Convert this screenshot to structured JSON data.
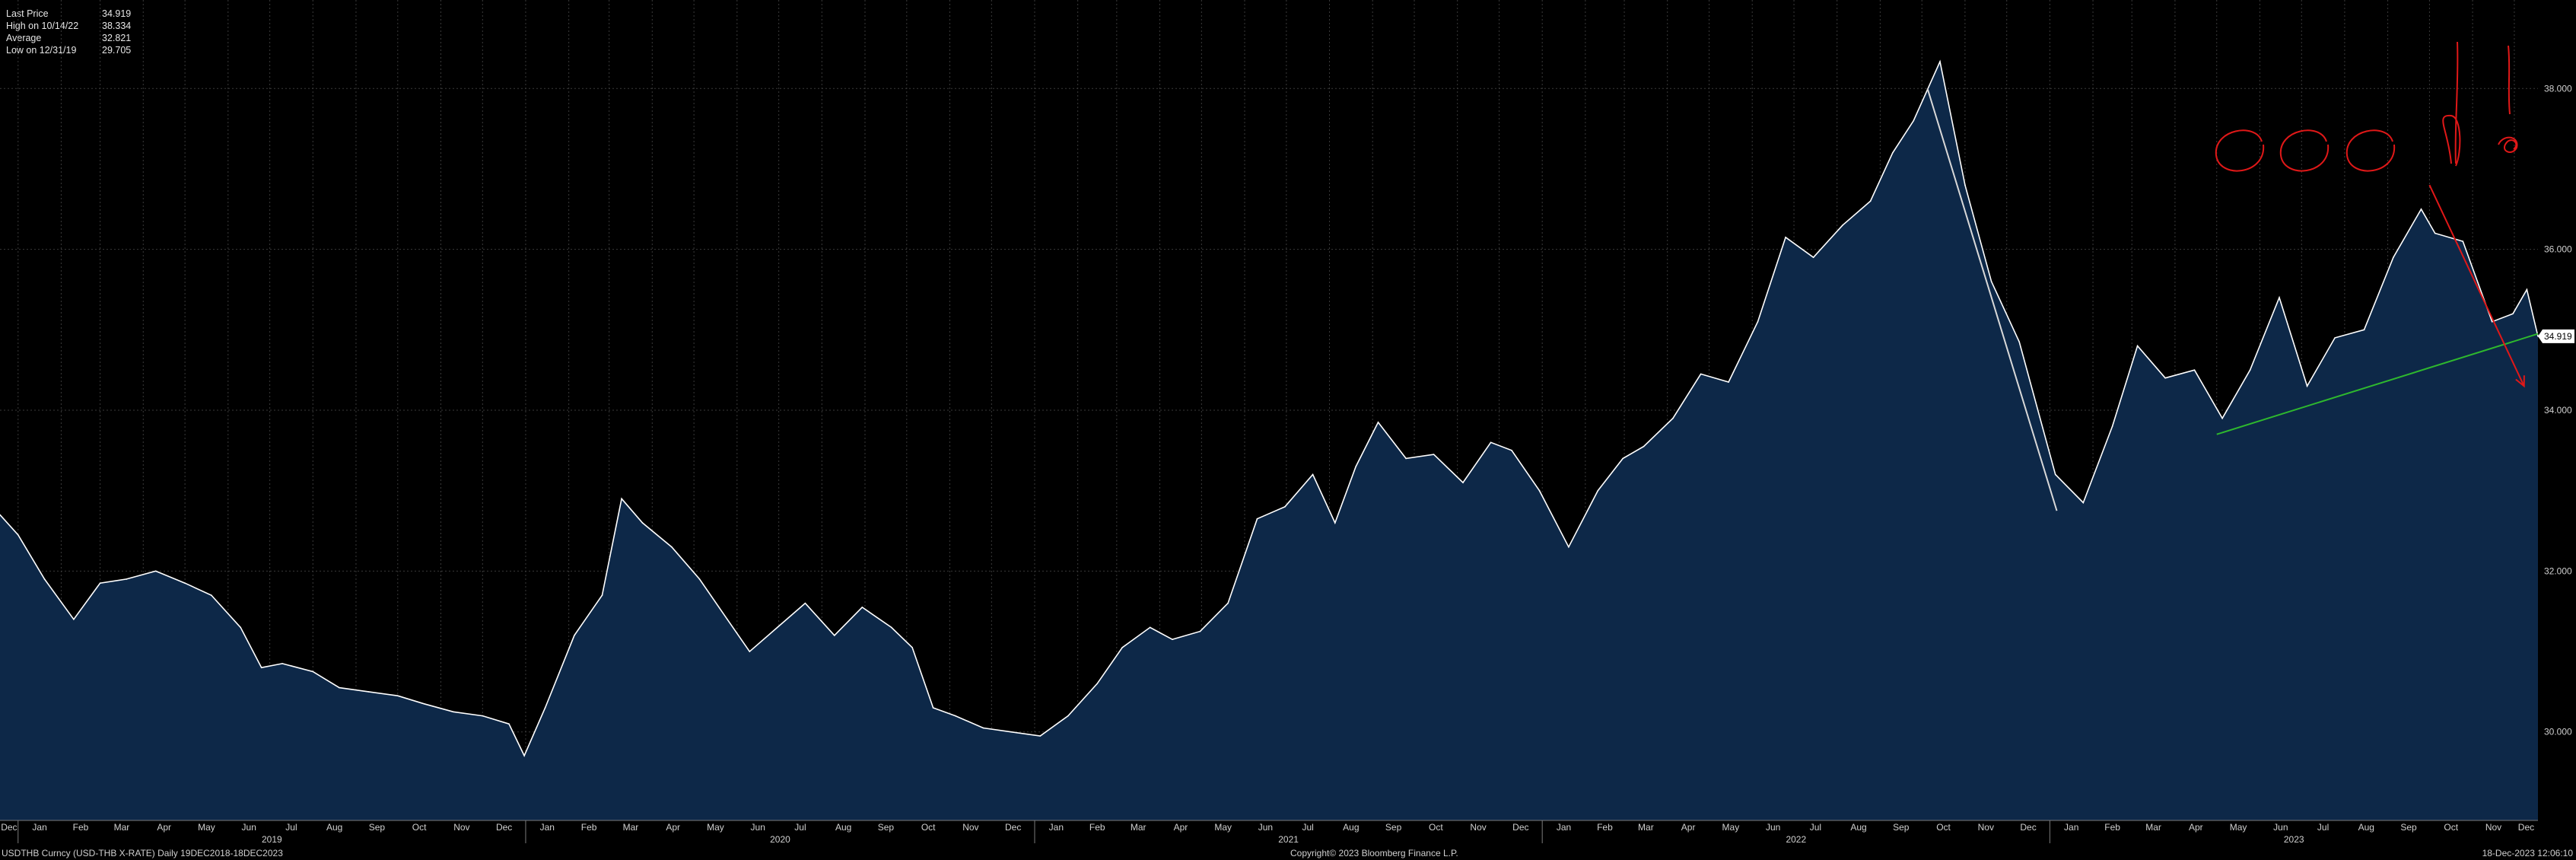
{
  "legend": {
    "items": [
      {
        "label": "Last Price",
        "value": "34.919"
      },
      {
        "label": "High on 10/14/22",
        "value": "38.334"
      },
      {
        "label": "Average",
        "value": "32.821"
      },
      {
        "label": "Low on 12/31/19",
        "value": "29.705"
      }
    ]
  },
  "footer": {
    "left": "USDTHB Curncy (USD-THB X-RATE)  Daily 19DEC2018-18DEC2023",
    "center": "Copyright© 2023 Bloomberg Finance L.P.",
    "right": "18-Dec-2023 12:06:10"
  },
  "colors": {
    "background": "#000000",
    "area_fill": "#0d2848",
    "price_line": "#ffffff",
    "trend_line_down": "#d9d9d9",
    "trend_line_support": "#2eb82e",
    "annotation_red": "#e01818",
    "grid": "#3a3a3a"
  },
  "chart_data": {
    "type": "area",
    "title": "",
    "ylabel": "",
    "xlim": [
      "2018-12-19",
      "2023-12-18"
    ],
    "ylim": [
      28.9,
      39.1
    ],
    "y_axis_position": "right",
    "y_ticks": [
      "30.000",
      "32.000",
      "34.000",
      "36.000",
      "38.000"
    ],
    "grid": true,
    "legend_placement": "top-left",
    "last_price_label": "34.919",
    "months": [
      "Dec",
      "Jan",
      "Feb",
      "Mar",
      "Apr",
      "May",
      "Jun",
      "Jul",
      "Aug",
      "Sep",
      "Oct",
      "Nov",
      "Dec",
      "Jan",
      "Feb",
      "Mar",
      "Apr",
      "May",
      "Jun",
      "Jul",
      "Aug",
      "Sep",
      "Oct",
      "Nov",
      "Dec",
      "Jan",
      "Feb",
      "Mar",
      "Apr",
      "May",
      "Jun",
      "Jul",
      "Aug",
      "Sep",
      "Oct",
      "Nov",
      "Dec",
      "Jan",
      "Feb",
      "Mar",
      "Apr",
      "May",
      "Jun",
      "Jul",
      "Aug",
      "Sep",
      "Oct",
      "Nov",
      "Dec",
      "Jan",
      "Feb",
      "Mar",
      "Apr",
      "May",
      "Jun",
      "Jul",
      "Aug",
      "Sep",
      "Oct",
      "Nov",
      "Dec"
    ],
    "years": [
      "2019",
      "2020",
      "2021",
      "2022",
      "2023"
    ],
    "series": [
      {
        "x": [
          "2018-12-19",
          "2019-01-01",
          "2019-01-20",
          "2019-02-10",
          "2019-03-01",
          "2019-03-20",
          "2019-04-10",
          "2019-05-01",
          "2019-05-20",
          "2019-06-10",
          "2019-06-25",
          "2019-07-10",
          "2019-08-01",
          "2019-08-20",
          "2019-09-10",
          "2019-10-01",
          "2019-10-20",
          "2019-11-10",
          "2019-12-01",
          "2019-12-20",
          "2019-12-31",
          "2020-01-15",
          "2020-02-05",
          "2020-02-25",
          "2020-03-10",
          "2020-03-25",
          "2020-04-15",
          "2020-05-05",
          "2020-05-25",
          "2020-06-10",
          "2020-06-30",
          "2020-07-20",
          "2020-08-10",
          "2020-08-30",
          "2020-09-20",
          "2020-10-05",
          "2020-10-20",
          "2020-11-05",
          "2020-11-25",
          "2020-12-15",
          "2021-01-05",
          "2021-01-25",
          "2021-02-15",
          "2021-03-05",
          "2021-03-25",
          "2021-04-10",
          "2021-04-30",
          "2021-05-20",
          "2021-06-10",
          "2021-06-30",
          "2021-07-20",
          "2021-08-05",
          "2021-08-20",
          "2021-09-05",
          "2021-09-25",
          "2021-10-15",
          "2021-11-05",
          "2021-11-25",
          "2021-12-10",
          "2021-12-30",
          "2022-01-20",
          "2022-02-10",
          "2022-02-28",
          "2022-03-15",
          "2022-04-05",
          "2022-04-25",
          "2022-05-15",
          "2022-06-05",
          "2022-06-25",
          "2022-07-15",
          "2022-08-05",
          "2022-08-25",
          "2022-09-10",
          "2022-09-25",
          "2022-10-14",
          "2022-11-01",
          "2022-11-20",
          "2022-12-10",
          "2023-01-05",
          "2023-01-25",
          "2023-02-15",
          "2023-03-05",
          "2023-03-25",
          "2023-04-15",
          "2023-05-05",
          "2023-05-25",
          "2023-06-15",
          "2023-07-05",
          "2023-07-25",
          "2023-08-15",
          "2023-09-05",
          "2023-09-25",
          "2023-10-05",
          "2023-10-25",
          "2023-11-15",
          "2023-11-30",
          "2023-12-10",
          "2023-12-18"
        ],
        "values": [
          32.7,
          32.45,
          31.9,
          31.4,
          31.85,
          31.9,
          32.0,
          31.85,
          31.7,
          31.3,
          30.8,
          30.85,
          30.75,
          30.55,
          30.5,
          30.45,
          30.35,
          30.25,
          30.2,
          30.1,
          29.705,
          30.3,
          31.2,
          31.7,
          32.9,
          32.6,
          32.3,
          31.9,
          31.4,
          31.0,
          31.3,
          31.6,
          31.2,
          31.55,
          31.3,
          31.05,
          30.3,
          30.2,
          30.05,
          30.0,
          29.95,
          30.2,
          30.6,
          31.05,
          31.3,
          31.15,
          31.25,
          31.6,
          32.65,
          32.8,
          33.2,
          32.6,
          33.3,
          33.85,
          33.4,
          33.45,
          33.1,
          33.6,
          33.5,
          33.0,
          32.3,
          33.0,
          33.4,
          33.55,
          33.9,
          34.45,
          34.35,
          35.1,
          36.15,
          35.9,
          36.3,
          36.6,
          37.2,
          37.6,
          38.334,
          36.8,
          35.6,
          34.85,
          33.2,
          32.85,
          33.8,
          34.8,
          34.4,
          34.5,
          33.9,
          34.5,
          35.4,
          34.3,
          34.9,
          35.0,
          35.9,
          36.5,
          36.2,
          36.1,
          35.1,
          35.2,
          35.5,
          34.919
        ]
      }
    ],
    "annotations": [
      {
        "type": "trend_line",
        "color": "#d9d9d9",
        "from": {
          "x": "2022-10-05",
          "y": 38.0
        },
        "to": {
          "x": "2023-01-06",
          "y": 32.75
        }
      },
      {
        "type": "trend_line",
        "color": "#2eb82e",
        "from": {
          "x": "2023-05-01",
          "y": 33.7
        },
        "to": {
          "x": "2023-12-18",
          "y": 34.95
        }
      },
      {
        "type": "arrow",
        "color": "#e01818",
        "from": {
          "x": "2023-10-01",
          "y": 36.8
        },
        "to": {
          "x": "2023-12-08",
          "y": 34.3
        }
      }
    ]
  }
}
